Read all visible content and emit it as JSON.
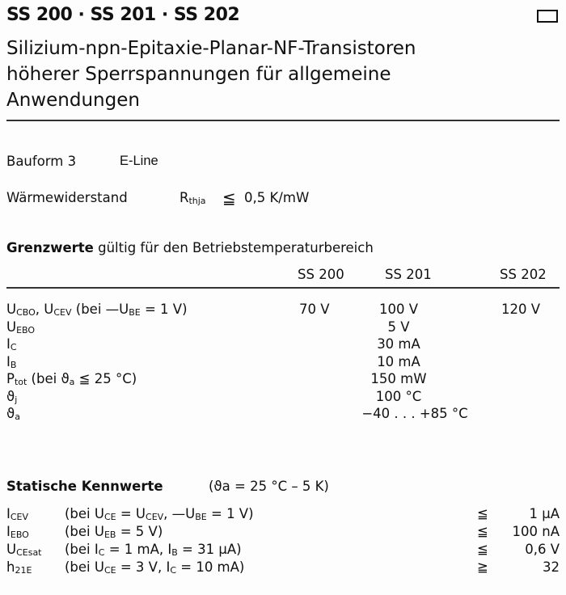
{
  "header": {
    "title": "SS 200 · SS 201 · SS 202",
    "subtitle_lines": [
      "Silizium-npn-Epitaxie-Planar-NF-Transistoren",
      "höherer Sperrspannungen für allgemeine",
      "Anwendungen"
    ]
  },
  "bauform": {
    "label": "Bauform 3",
    "value": "E-Line"
  },
  "waermewiderstand": {
    "label": "Wärmewiderstand",
    "symbol": "R",
    "symbol_sub": "thja",
    "relation": "≦",
    "value": "0,5 K/mW"
  },
  "grenzwerte": {
    "heading": "Grenzwerte",
    "heading_rest": " gültig für den Betriebstemperaturbereich",
    "columns": [
      "SS 200",
      "SS 201",
      "SS 202"
    ],
    "rows": [
      {
        "label": [
          [
            "U",
            ""
          ],
          [
            "CBO",
            "s"
          ],
          [
            ", U",
            ""
          ],
          [
            "CEV",
            "s"
          ],
          [
            " (bei —U",
            ""
          ],
          [
            "BE",
            "s"
          ],
          [
            " = 1 V)",
            ""
          ]
        ],
        "values": [
          "70 V",
          "100 V",
          "120 V"
        ]
      },
      {
        "label": [
          [
            "U",
            ""
          ],
          [
            "EBO",
            "s"
          ]
        ],
        "values": [
          "",
          "5 V",
          ""
        ]
      },
      {
        "label": [
          [
            "I",
            ""
          ],
          [
            "C",
            "s"
          ]
        ],
        "values": [
          "",
          "30 mA",
          ""
        ]
      },
      {
        "label": [
          [
            "I",
            ""
          ],
          [
            "B",
            "s"
          ]
        ],
        "values": [
          "",
          "10 mA",
          ""
        ]
      },
      {
        "label": [
          [
            "P",
            ""
          ],
          [
            "tot",
            "s"
          ],
          [
            " (bei ϑ",
            ""
          ],
          [
            "a",
            "s"
          ],
          [
            " ≦ 25 °C)",
            ""
          ]
        ],
        "values": [
          "",
          "150 mW",
          ""
        ]
      },
      {
        "label": [
          [
            "ϑ",
            ""
          ],
          [
            "j",
            "s"
          ]
        ],
        "values": [
          "",
          "100 °C",
          ""
        ]
      },
      {
        "label": [
          [
            "ϑ",
            ""
          ],
          [
            "a",
            "s"
          ]
        ],
        "values": [
          "",
          "−40 . . . +85 °C",
          ""
        ]
      }
    ]
  },
  "statische": {
    "heading": "Statische Kennwerte",
    "condition": "(ϑa = 25 °C – 5 K)",
    "rows": [
      {
        "symbol": [
          [
            "I",
            ""
          ],
          [
            "CEV",
            "s"
          ]
        ],
        "cond": [
          [
            "(bei U",
            ""
          ],
          [
            "CE",
            "s"
          ],
          [
            " = U",
            ""
          ],
          [
            "CEV",
            "s"
          ],
          [
            ", —U",
            ""
          ],
          [
            "BE",
            "s"
          ],
          [
            " = 1 V)",
            ""
          ]
        ],
        "relation": "≦",
        "value": "1 µA"
      },
      {
        "symbol": [
          [
            "I",
            ""
          ],
          [
            "EBO",
            "s"
          ]
        ],
        "cond": [
          [
            "(bei U",
            ""
          ],
          [
            "EB",
            "s"
          ],
          [
            " = 5 V)",
            ""
          ]
        ],
        "relation": "≦",
        "value": "100 nA"
      },
      {
        "symbol": [
          [
            "U",
            ""
          ],
          [
            "CEsat",
            "s"
          ]
        ],
        "cond": [
          [
            "(bei I",
            ""
          ],
          [
            "C",
            "s"
          ],
          [
            "  = 1 mA, I",
            ""
          ],
          [
            "B",
            "s"
          ],
          [
            " = 31 µA)",
            ""
          ]
        ],
        "relation": "≦",
        "value": "0,6 V"
      },
      {
        "symbol": [
          [
            "h",
            ""
          ],
          [
            "21E",
            "s"
          ]
        ],
        "cond": [
          [
            "(bei U",
            ""
          ],
          [
            "CE",
            "s"
          ],
          [
            " = 3 V,  I",
            ""
          ],
          [
            "C",
            "s"
          ],
          [
            " = 10 mA)",
            ""
          ]
        ],
        "relation": "≧",
        "value": "32"
      }
    ]
  }
}
